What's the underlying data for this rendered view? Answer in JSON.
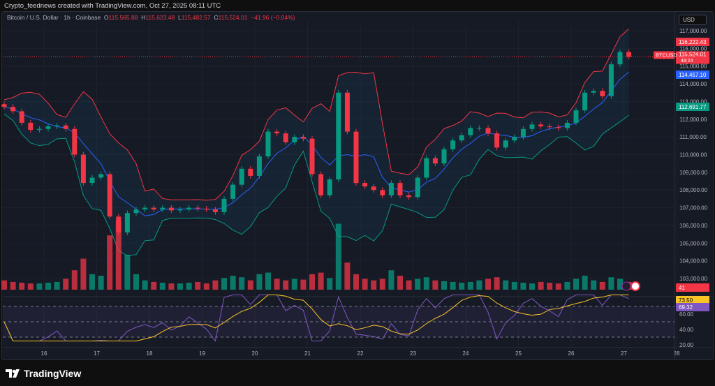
{
  "credit": "Crypto_feednews created with TradingView.com, Oct 27, 2025 08:11 UTC",
  "legend": {
    "symbol": "Bitcoin / U.S. Dollar · 1h · Coinbase",
    "o_label": "O",
    "o": "115,565.88",
    "h_label": "H",
    "h": "115,623.48",
    "l_label": "L",
    "l": "115,482.57",
    "c_label": "C",
    "c": "115,524.01",
    "change": "−41.96 (−0.04%)"
  },
  "currency": "USD",
  "price_tags": {
    "upper_band": "116,222.43",
    "last": "115,524.01",
    "countdown": "48:24",
    "symbol": "BTCUSD",
    "basis": "114,457.10",
    "lower_band": "112,691.77",
    "volume": "41",
    "rsi_ma": "73.50",
    "rsi": "69.32"
  },
  "colors": {
    "up": "#089981",
    "down": "#f23645",
    "basis": "#2962ff",
    "upper": "#f23645",
    "lower": "#089981",
    "rsi": "#7e57c2",
    "rsi_ma": "#f7c325",
    "bg": "#161a25"
  },
  "brand": "TradingView",
  "chart_data": {
    "type": "candlestick",
    "timeframe": "1h",
    "x_tick_labels": [
      "16",
      "17",
      "18",
      "19",
      "20",
      "21",
      "22",
      "23",
      "24",
      "25",
      "26",
      "27",
      "28"
    ],
    "y_tick_labels": [
      "103,000.00",
      "104,000.00",
      "105,000.00",
      "106,000.00",
      "107,000.00",
      "108,000.00",
      "109,000.00",
      "110,000.00",
      "111,000.00",
      "112,000.00",
      "113,000.00",
      "114,000.00",
      "115,000.00",
      "116,000.00",
      "117,000.00"
    ],
    "ylim": [
      102600,
      117400
    ],
    "rsi_tick_labels": [
      "20.00",
      "40.00",
      "60.00"
    ],
    "rsi_levels": [
      30,
      50,
      70
    ],
    "approx_close_path_start": "Oct 15 06:00",
    "approx_close_step_hours": 4,
    "closes": [
      112700,
      112450,
      111800,
      111400,
      111450,
      111600,
      111650,
      111450,
      110000,
      108400,
      108700,
      108900,
      106500,
      105600,
      106700,
      106900,
      107000,
      106900,
      107000,
      106850,
      106900,
      107000,
      106950,
      106900,
      106750,
      107500,
      108300,
      109200,
      108800,
      109900,
      111300,
      111200,
      110700,
      111000,
      110900,
      108900,
      107700,
      108600,
      113500,
      111300,
      108400,
      108200,
      108000,
      107700,
      108400,
      107700,
      107600,
      108700,
      109800,
      109500,
      110300,
      110800,
      111100,
      111500,
      111500,
      111200,
      110400,
      110800,
      111000,
      111450,
      111700,
      111600,
      111550,
      111500,
      111800,
      112500,
      113500,
      113600,
      113300,
      115100,
      115800,
      115524
    ],
    "volume_relative": [
      12,
      10,
      9,
      8,
      8,
      9,
      10,
      14,
      25,
      40,
      20,
      18,
      70,
      90,
      45,
      20,
      12,
      10,
      9,
      8,
      8,
      9,
      10,
      8,
      12,
      15,
      18,
      16,
      12,
      20,
      22,
      14,
      12,
      14,
      13,
      20,
      22,
      15,
      85,
      35,
      20,
      14,
      12,
      14,
      25,
      18,
      12,
      14,
      16,
      12,
      11,
      10,
      9,
      10,
      12,
      14,
      16,
      12,
      10,
      9,
      8,
      10,
      9,
      8,
      10,
      14,
      18,
      12,
      10,
      16,
      14,
      10
    ]
  }
}
